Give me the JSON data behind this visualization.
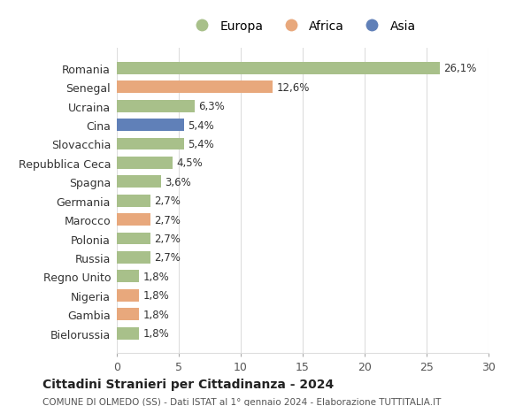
{
  "categories": [
    "Romania",
    "Senegal",
    "Ucraina",
    "Cina",
    "Slovacchia",
    "Repubblica Ceca",
    "Spagna",
    "Germania",
    "Marocco",
    "Polonia",
    "Russia",
    "Regno Unito",
    "Nigeria",
    "Gambia",
    "Bielorussia"
  ],
  "values": [
    26.1,
    12.6,
    6.3,
    5.4,
    5.4,
    4.5,
    3.6,
    2.7,
    2.7,
    2.7,
    2.7,
    1.8,
    1.8,
    1.8,
    1.8
  ],
  "labels": [
    "26,1%",
    "12,6%",
    "6,3%",
    "5,4%",
    "5,4%",
    "4,5%",
    "3,6%",
    "2,7%",
    "2,7%",
    "2,7%",
    "2,7%",
    "1,8%",
    "1,8%",
    "1,8%",
    "1,8%"
  ],
  "continents": [
    "Europa",
    "Africa",
    "Europa",
    "Asia",
    "Europa",
    "Europa",
    "Europa",
    "Europa",
    "Africa",
    "Europa",
    "Europa",
    "Europa",
    "Africa",
    "Africa",
    "Europa"
  ],
  "colors": {
    "Europa": "#a8c08a",
    "Africa": "#e8a87c",
    "Asia": "#6080b8"
  },
  "xlim": [
    0,
    30
  ],
  "xticks": [
    0,
    5,
    10,
    15,
    20,
    25,
    30
  ],
  "title": "Cittadini Stranieri per Cittadinanza - 2024",
  "subtitle": "COMUNE DI OLMEDO (SS) - Dati ISTAT al 1° gennaio 2024 - Elaborazione TUTTITALIA.IT",
  "background_color": "#ffffff",
  "grid_color": "#dddddd"
}
